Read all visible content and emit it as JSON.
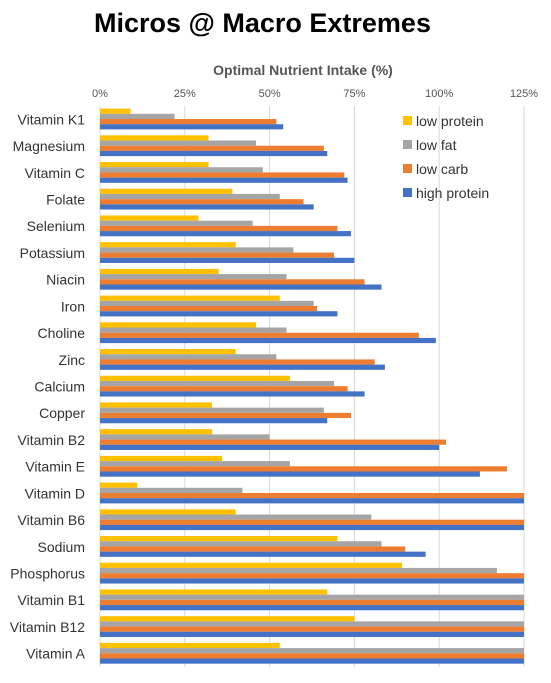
{
  "title": "Micros @ Macro Extremes",
  "chart_data": {
    "type": "bar",
    "orientation": "horizontal",
    "title": "Micros @ Macro Extremes",
    "xlabel": "Optimal Nutrient Intake (%)",
    "ylabel": "",
    "xlim": [
      0,
      125
    ],
    "tick_values": [
      0,
      25,
      50,
      75,
      100,
      125
    ],
    "tick_labels": [
      "0%",
      "25%",
      "50%",
      "75%",
      "100%",
      "125%"
    ],
    "x_axis_position": "top",
    "grid": true,
    "legend_position": "top-right",
    "categories": [
      "Vitamin K1",
      "Magnesium",
      "Vitamin C",
      "Folate",
      "Selenium",
      "Potassium",
      "Niacin",
      "Iron",
      "Choline",
      "Zinc",
      "Calcium",
      "Copper",
      "Vitamin B2",
      "Vitamin E",
      "Vitamin D",
      "Vitamin B6",
      "Sodium",
      "Phosphorus",
      "Vitamin B1",
      "Vitamin B12",
      "Vitamin A"
    ],
    "series": [
      {
        "name": "low protein",
        "color": "#FFC000",
        "values": [
          9,
          32,
          32,
          39,
          29,
          40,
          35,
          53,
          46,
          40,
          56,
          33,
          33,
          36,
          11,
          40,
          70,
          89,
          67,
          75,
          53
        ]
      },
      {
        "name": "low fat",
        "color": "#A5A5A5",
        "values": [
          22,
          46,
          48,
          53,
          45,
          57,
          55,
          63,
          55,
          52,
          69,
          66,
          50,
          56,
          42,
          80,
          83,
          117,
          125,
          125,
          125
        ]
      },
      {
        "name": "low carb",
        "color": "#ED7D31",
        "values": [
          52,
          66,
          72,
          60,
          70,
          69,
          78,
          64,
          94,
          81,
          73,
          74,
          102,
          120,
          125,
          125,
          90,
          125,
          125,
          125,
          125
        ]
      },
      {
        "name": "high protein",
        "color": "#4472C4",
        "values": [
          54,
          67,
          73,
          63,
          74,
          75,
          83,
          70,
          99,
          84,
          78,
          67,
          100,
          112,
          125,
          125,
          96,
          125,
          125,
          125,
          125
        ]
      }
    ]
  }
}
